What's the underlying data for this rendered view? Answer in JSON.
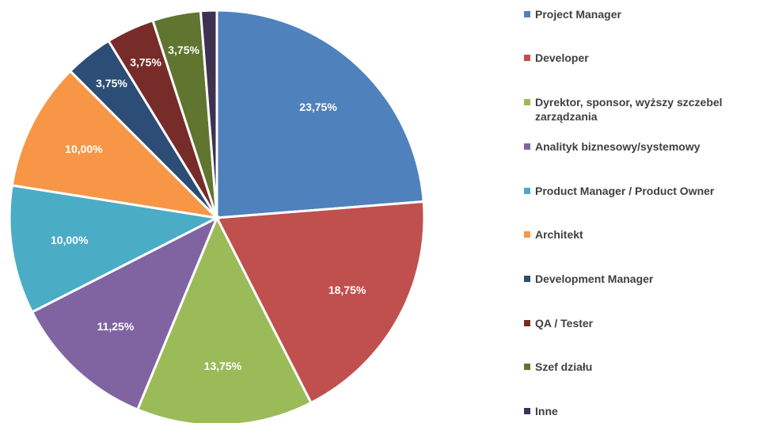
{
  "chart_data": {
    "type": "pie",
    "categories": [
      "Project Manager",
      "Developer",
      "Dyrektor, sponsor, wyższy szczebel zarządzania",
      "Analityk biznesowy/systemowy",
      "Product Manager / Product Owner",
      "Architekt",
      "Development Manager",
      "QA / Tester",
      "Szef działu",
      "Inne"
    ],
    "values": [
      23.75,
      18.75,
      13.75,
      11.25,
      10,
      10,
      3.75,
      3.75,
      3.75,
      1.25
    ],
    "value_labels": [
      "23,75%",
      "18,75%",
      "13,75%",
      "11,25%",
      "10,00%",
      "10,00%",
      "3,75%",
      "3,75%",
      "3,75%",
      null
    ],
    "colors": [
      "#4f81bd",
      "#c0504d",
      "#9bbb59",
      "#8064a2",
      "#4bacc6",
      "#f79646",
      "#2c4d75",
      "#772c2a",
      "#5f7530",
      "#3f3151"
    ],
    "legend": "right"
  }
}
